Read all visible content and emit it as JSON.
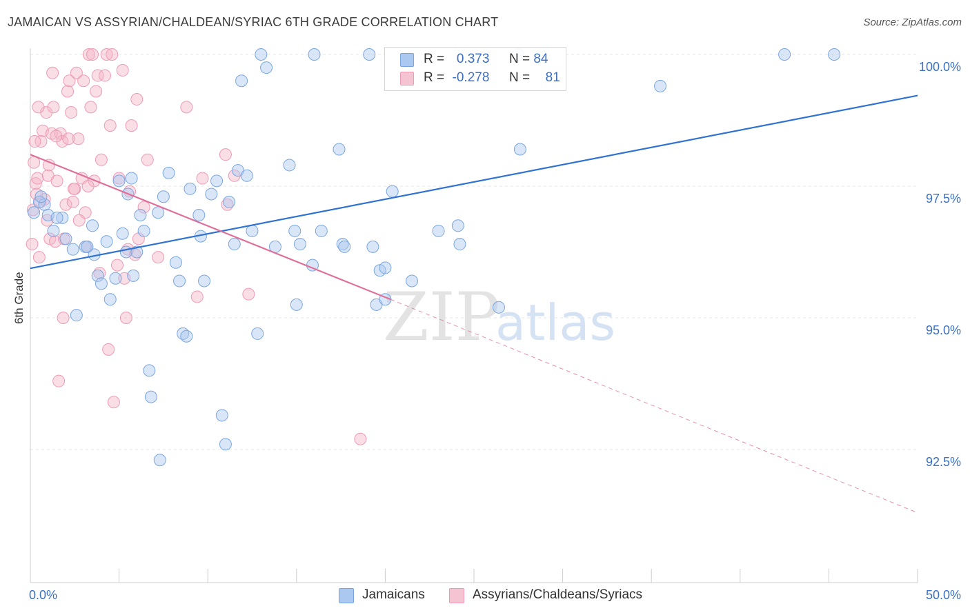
{
  "title": "JAMAICAN VS ASSYRIAN/CHALDEAN/SYRIAC 6TH GRADE CORRELATION CHART",
  "source": "Source: ZipAtlas.com",
  "watermark": {
    "zip": "ZIP",
    "atlas": "atlas"
  },
  "legend": {
    "rows": [
      {
        "r_label": "R =",
        "r_value": "0.373",
        "n_label": "N =",
        "n_value": "84"
      },
      {
        "r_label": "R =",
        "r_value": "-0.278",
        "n_label": "N =",
        "n_value": "81"
      }
    ]
  },
  "bottom_legend": {
    "series1": "Jamaicans",
    "series2": "Assyrians/Chaldeans/Syriacs"
  },
  "colors": {
    "blue_fill": "#aac8f0",
    "blue_stroke": "#7aa6e0",
    "blue_line": "#2f72d0",
    "pink_fill": "#f5b6c8",
    "pink_stroke": "#ee9ab5",
    "pink_line": "#e0709a",
    "tick_label": "#3a6fc4",
    "grid": "#e6e6e6",
    "axis": "#cccccc"
  },
  "chart_data": {
    "type": "scatter",
    "title": "JAMAICAN VS ASSYRIAN/CHALDEAN/SYRIAC 6TH GRADE CORRELATION CHART",
    "xlabel": "",
    "ylabel": "6th Grade",
    "xlim": [
      0,
      50
    ],
    "ylim": [
      90.2,
      100.2
    ],
    "x_tick_labels": [
      "0.0%",
      "50.0%"
    ],
    "y_ticks": [
      92.5,
      95.0,
      97.5,
      100.0
    ],
    "y_tick_labels": [
      "92.5%",
      "95.0%",
      "97.5%",
      "100.0%"
    ],
    "grid": true,
    "legend_position": "top-center",
    "series": [
      {
        "name": "Jamaicans",
        "R": 0.373,
        "N": 84,
        "trend": {
          "x": [
            0,
            50
          ],
          "y": [
            95.94,
            99.22
          ]
        },
        "points": [
          [
            0.2,
            97.0
          ],
          [
            0.5,
            97.2
          ],
          [
            0.8,
            97.15
          ],
          [
            1.0,
            96.95
          ],
          [
            1.3,
            96.65
          ],
          [
            1.8,
            96.9
          ],
          [
            2.0,
            96.5
          ],
          [
            2.4,
            96.3
          ],
          [
            2.6,
            95.05
          ],
          [
            3.1,
            96.35
          ],
          [
            3.5,
            96.75
          ],
          [
            3.6,
            96.2
          ],
          [
            3.8,
            95.8
          ],
          [
            4.0,
            95.65
          ],
          [
            4.3,
            96.45
          ],
          [
            4.5,
            95.35
          ],
          [
            4.8,
            95.75
          ],
          [
            5.0,
            97.6
          ],
          [
            5.2,
            96.6
          ],
          [
            5.4,
            96.25
          ],
          [
            5.5,
            97.35
          ],
          [
            5.7,
            97.65
          ],
          [
            6.0,
            96.25
          ],
          [
            6.2,
            96.95
          ],
          [
            6.4,
            96.65
          ],
          [
            6.7,
            94.0
          ],
          [
            6.8,
            93.5
          ],
          [
            7.2,
            97.0
          ],
          [
            7.3,
            92.3
          ],
          [
            7.5,
            97.3
          ],
          [
            7.8,
            97.75
          ],
          [
            8.2,
            96.05
          ],
          [
            8.4,
            95.7
          ],
          [
            8.6,
            94.7
          ],
          [
            8.8,
            94.65
          ],
          [
            9.0,
            97.45
          ],
          [
            9.5,
            96.95
          ],
          [
            9.6,
            96.55
          ],
          [
            9.8,
            95.7
          ],
          [
            10.2,
            97.35
          ],
          [
            10.5,
            97.6
          ],
          [
            10.8,
            93.15
          ],
          [
            11.0,
            92.6
          ],
          [
            11.2,
            97.2
          ],
          [
            11.5,
            96.4
          ],
          [
            11.7,
            97.8
          ],
          [
            11.9,
            99.5
          ],
          [
            12.2,
            97.7
          ],
          [
            12.5,
            96.65
          ],
          [
            12.8,
            94.7
          ],
          [
            13.0,
            100.0
          ],
          [
            13.3,
            99.75
          ],
          [
            14.6,
            97.9
          ],
          [
            14.9,
            96.65
          ],
          [
            15.0,
            95.25
          ],
          [
            15.2,
            96.4
          ],
          [
            15.9,
            96.0
          ],
          [
            16.0,
            100.0
          ],
          [
            16.4,
            96.65
          ],
          [
            17.4,
            98.2
          ],
          [
            17.6,
            96.4
          ],
          [
            17.7,
            96.35
          ],
          [
            19.1,
            100.0
          ],
          [
            19.3,
            96.35
          ],
          [
            19.5,
            95.25
          ],
          [
            19.7,
            95.9
          ],
          [
            20.0,
            95.95
          ],
          [
            20.0,
            95.35
          ],
          [
            20.4,
            97.4
          ],
          [
            21.5,
            95.7
          ],
          [
            23.0,
            96.65
          ],
          [
            24.1,
            96.75
          ],
          [
            24.2,
            96.4
          ],
          [
            26.4,
            95.2
          ],
          [
            27.5,
            100.0
          ],
          [
            27.6,
            98.2
          ],
          [
            35.5,
            99.4
          ],
          [
            42.5,
            100.0
          ],
          [
            45.3,
            100.0
          ],
          [
            0.6,
            97.3
          ],
          [
            1.5,
            96.9
          ],
          [
            3.2,
            96.35
          ],
          [
            5.8,
            95.8
          ],
          [
            13.8,
            96.35
          ]
        ]
      },
      {
        "name": "Assyrians/Chaldeans/Syriacs",
        "R": -0.278,
        "N": 81,
        "trend": {
          "x": [
            0,
            20.3
          ],
          "y": [
            98.1,
            95.35
          ]
        },
        "trend_dashed": {
          "x": [
            20.3,
            50
          ],
          "y": [
            95.35,
            91.3
          ]
        },
        "points": [
          [
            0.1,
            96.4
          ],
          [
            0.2,
            97.95
          ],
          [
            0.3,
            97.55
          ],
          [
            0.4,
            97.65
          ],
          [
            0.5,
            96.15
          ],
          [
            0.6,
            98.35
          ],
          [
            0.7,
            98.55
          ],
          [
            0.8,
            97.25
          ],
          [
            0.9,
            98.9
          ],
          [
            1.0,
            97.7
          ],
          [
            1.1,
            96.5
          ],
          [
            1.2,
            98.5
          ],
          [
            1.3,
            99.0
          ],
          [
            1.4,
            96.45
          ],
          [
            1.5,
            97.6
          ],
          [
            1.6,
            93.8
          ],
          [
            1.7,
            98.5
          ],
          [
            1.8,
            98.35
          ],
          [
            1.9,
            96.5
          ],
          [
            2.0,
            97.15
          ],
          [
            2.1,
            99.3
          ],
          [
            2.2,
            99.5
          ],
          [
            2.3,
            98.9
          ],
          [
            2.4,
            97.2
          ],
          [
            2.5,
            97.45
          ],
          [
            2.6,
            99.65
          ],
          [
            2.7,
            98.4
          ],
          [
            2.9,
            97.65
          ],
          [
            3.0,
            99.5
          ],
          [
            3.1,
            97.0
          ],
          [
            3.2,
            96.35
          ],
          [
            3.3,
            100.0
          ],
          [
            3.4,
            99.0
          ],
          [
            3.5,
            100.0
          ],
          [
            3.6,
            97.6
          ],
          [
            3.7,
            99.3
          ],
          [
            3.8,
            99.6
          ],
          [
            4.0,
            98.0
          ],
          [
            4.2,
            99.6
          ],
          [
            4.3,
            100.0
          ],
          [
            4.4,
            94.4
          ],
          [
            4.5,
            98.65
          ],
          [
            4.6,
            100.0
          ],
          [
            4.7,
            93.4
          ],
          [
            5.0,
            97.65
          ],
          [
            5.2,
            99.7
          ],
          [
            5.3,
            95.75
          ],
          [
            5.4,
            95.0
          ],
          [
            5.6,
            97.4
          ],
          [
            5.7,
            98.65
          ],
          [
            5.9,
            96.2
          ],
          [
            6.0,
            99.15
          ],
          [
            6.1,
            96.5
          ],
          [
            6.4,
            97.1
          ],
          [
            6.6,
            98.0
          ],
          [
            7.2,
            96.15
          ],
          [
            8.8,
            99.0
          ],
          [
            9.4,
            95.4
          ],
          [
            9.7,
            97.65
          ],
          [
            11.0,
            98.1
          ],
          [
            11.1,
            97.15
          ],
          [
            11.5,
            97.7
          ],
          [
            12.3,
            95.45
          ],
          [
            18.6,
            92.7
          ],
          [
            0.15,
            97.05
          ],
          [
            0.35,
            97.35
          ],
          [
            0.55,
            97.2
          ],
          [
            0.95,
            96.85
          ],
          [
            1.45,
            98.45
          ],
          [
            2.15,
            98.4
          ],
          [
            2.75,
            96.85
          ],
          [
            0.45,
            99.0
          ],
          [
            1.25,
            99.65
          ],
          [
            1.85,
            95.0
          ],
          [
            3.9,
            95.85
          ],
          [
            4.9,
            96.0
          ],
          [
            1.05,
            97.9
          ],
          [
            0.25,
            98.35
          ],
          [
            2.45,
            97.45
          ],
          [
            3.25,
            97.5
          ],
          [
            5.5,
            96.3
          ]
        ]
      }
    ]
  }
}
